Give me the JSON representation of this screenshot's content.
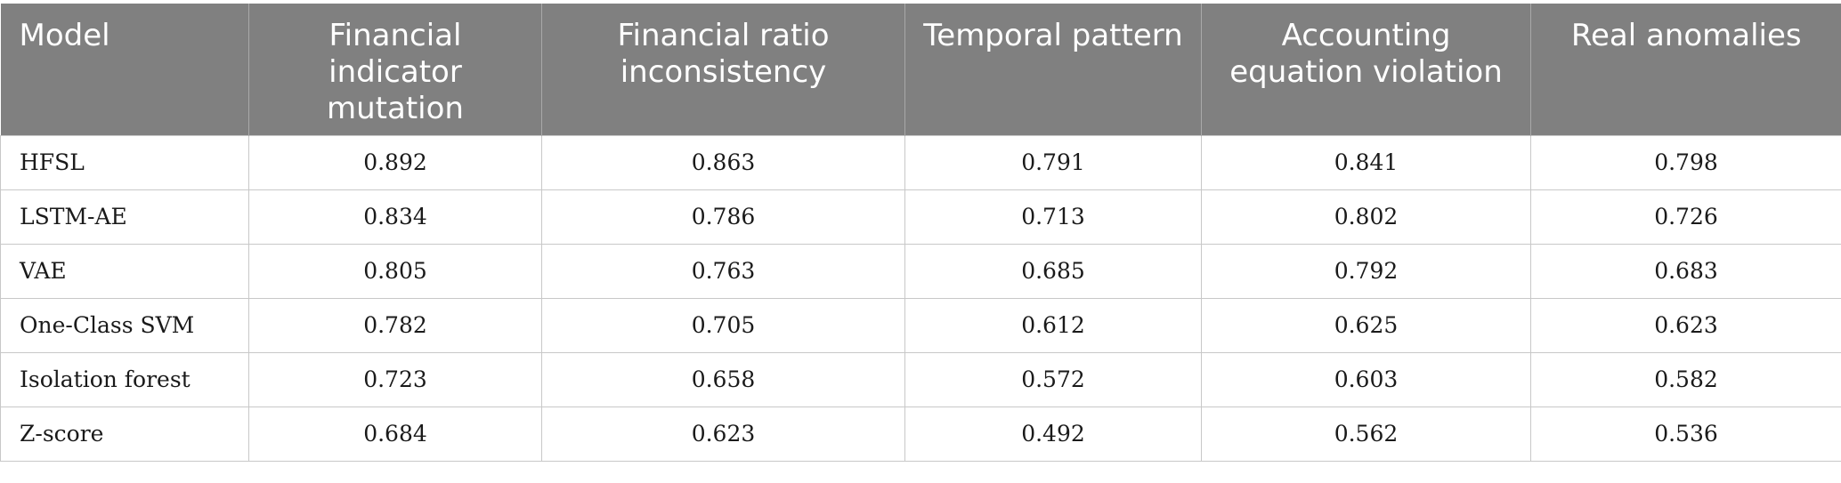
{
  "table": {
    "headers": [
      "Model",
      "Financial indicator mutation",
      "Financial ratio inconsistency",
      "Temporal pattern",
      "Accounting equation violation",
      "Real anomalies"
    ],
    "rows": [
      [
        "HFSL",
        "0.892",
        "0.863",
        "0.791",
        "0.841",
        "0.798"
      ],
      [
        "LSTM-AE",
        "0.834",
        "0.786",
        "0.713",
        "0.802",
        "0.726"
      ],
      [
        "VAE",
        "0.805",
        "0.763",
        "0.685",
        "0.792",
        "0.683"
      ],
      [
        "One-Class SVM",
        "0.782",
        "0.705",
        "0.612",
        "0.625",
        "0.623"
      ],
      [
        "Isolation forest",
        "0.723",
        "0.658",
        "0.572",
        "0.603",
        "0.582"
      ],
      [
        "Z-score",
        "0.684",
        "0.623",
        "0.492",
        "0.562",
        "0.536"
      ]
    ],
    "colors": {
      "header_background": "#808080",
      "header_text": "#ffffff",
      "grid_lines": "#c8c8c8"
    }
  }
}
